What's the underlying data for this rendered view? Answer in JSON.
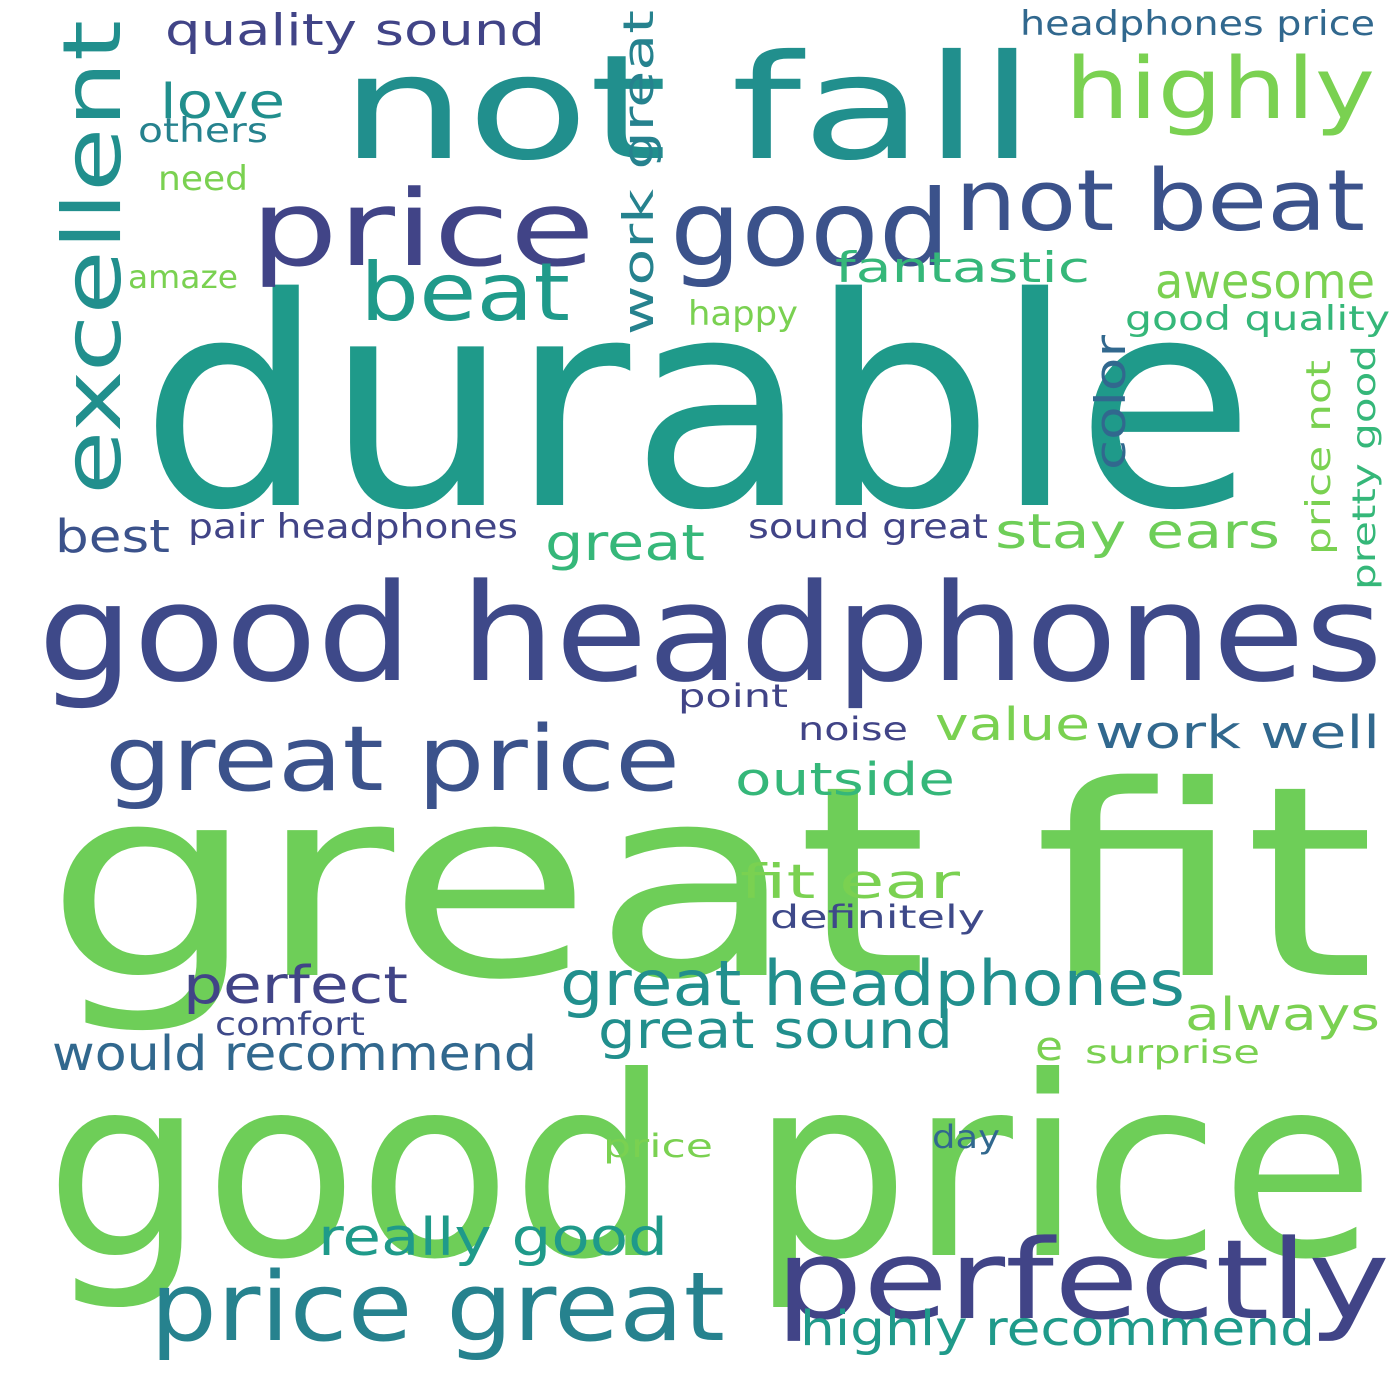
{
  "palette": {
    "green": "#6ece58",
    "lightgreen": "#7ad151",
    "teal": "#1f9a8a",
    "teal2": "#218f8d",
    "seagreen": "#35b779",
    "blue": "#3e4989",
    "navy": "#414487",
    "darkblue": "#3b528b",
    "slate": "#31688e",
    "cyan": "#26828e"
  },
  "words": [
    {
      "text": "durable",
      "color": "teal"
    },
    {
      "text": "great fit",
      "color": "green"
    },
    {
      "text": "good price",
      "color": "green"
    },
    {
      "text": "not fall",
      "color": "teal2"
    },
    {
      "text": "good headphones",
      "color": "blue"
    },
    {
      "text": "price",
      "color": "navy"
    },
    {
      "text": "good",
      "color": "darkblue"
    },
    {
      "text": "not beat",
      "color": "darkblue"
    },
    {
      "text": "highly",
      "color": "lightgreen"
    },
    {
      "text": "perfectly",
      "color": "navy"
    },
    {
      "text": "price great",
      "color": "cyan"
    },
    {
      "text": "great price",
      "color": "darkblue"
    },
    {
      "text": "excellent",
      "color": "teal2"
    },
    {
      "text": "beat",
      "color": "teal"
    },
    {
      "text": "great headphones",
      "color": "teal2"
    },
    {
      "text": "really good",
      "color": "teal"
    },
    {
      "text": "would recommend",
      "color": "slate"
    },
    {
      "text": "highly recommend",
      "color": "teal"
    },
    {
      "text": "great sound",
      "color": "teal2"
    },
    {
      "text": "work well",
      "color": "slate"
    },
    {
      "text": "quality sound",
      "color": "navy"
    },
    {
      "text": "stay ears",
      "color": "green"
    },
    {
      "text": "great",
      "color": "seagreen"
    },
    {
      "text": "awesome",
      "color": "lightgreen"
    },
    {
      "text": "fantastic",
      "color": "seagreen"
    },
    {
      "text": "perfect",
      "color": "navy"
    },
    {
      "text": "outside",
      "color": "seagreen"
    },
    {
      "text": "fit ear",
      "color": "lightgreen"
    },
    {
      "text": "love",
      "color": "teal2"
    },
    {
      "text": "best",
      "color": "darkblue"
    },
    {
      "text": "value",
      "color": "lightgreen"
    },
    {
      "text": "always",
      "color": "lightgreen"
    },
    {
      "text": "work great",
      "color": "cyan"
    },
    {
      "text": "color",
      "color": "slate"
    },
    {
      "text": "pair headphones",
      "color": "navy"
    },
    {
      "text": "sound great",
      "color": "navy"
    },
    {
      "text": "headphones price",
      "color": "slate"
    },
    {
      "text": "good quality",
      "color": "seagreen"
    },
    {
      "text": "price not",
      "color": "lightgreen"
    },
    {
      "text": "pretty good",
      "color": "seagreen"
    },
    {
      "text": "others",
      "color": "cyan"
    },
    {
      "text": "need",
      "color": "lightgreen"
    },
    {
      "text": "amaze",
      "color": "lightgreen"
    },
    {
      "text": "happy",
      "color": "lightgreen"
    },
    {
      "text": "point",
      "color": "navy"
    },
    {
      "text": "noise",
      "color": "navy"
    },
    {
      "text": "definitely",
      "color": "blue"
    },
    {
      "text": "comfort",
      "color": "blue"
    },
    {
      "text": "surprise",
      "color": "lightgreen"
    },
    {
      "text": "price",
      "color": "lightgreen"
    },
    {
      "text": "day",
      "color": "slate"
    },
    {
      "text": "e",
      "color": "lightgreen"
    }
  ]
}
